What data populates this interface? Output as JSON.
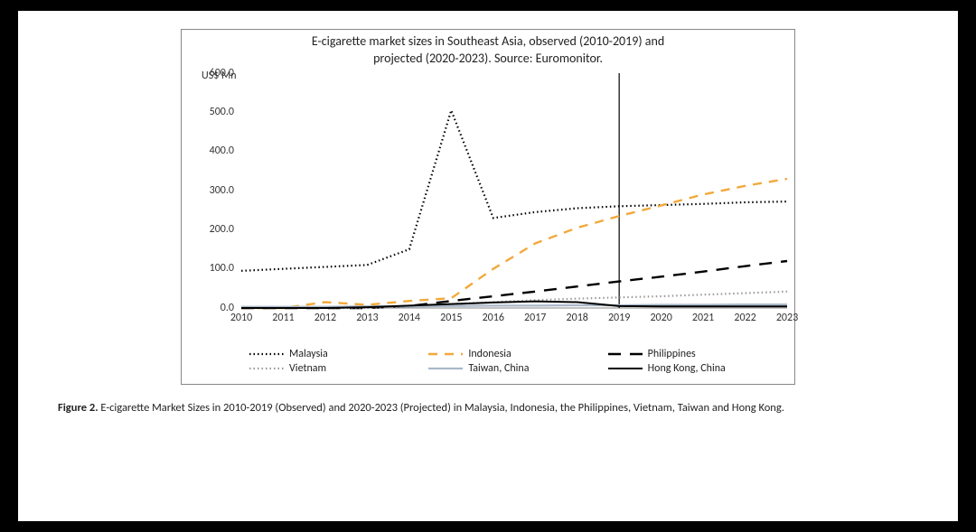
{
  "chart": {
    "type": "line",
    "title_line1": "E-cigarette market sizes in Southeast Asia, observed (2010-2019) and",
    "title_line2": "projected (2020-2023). Source: Euromonitor.",
    "title_fontsize": 14,
    "y_unit_label": "US$ Mn",
    "background_color": "#ffffff",
    "border_color": "#888888",
    "years": [
      "2010",
      "2011",
      "2012",
      "2013",
      "2014",
      "2015",
      "2016",
      "2017",
      "2018",
      "2019",
      "2020",
      "2021",
      "2022",
      "2023"
    ],
    "xlim": [
      2010,
      2023
    ],
    "ylim": [
      0,
      600
    ],
    "ytick_step": 100,
    "yticks": [
      "0.0",
      "100.0",
      "200.0",
      "300.0",
      "400.0",
      "500.0",
      "600.0"
    ],
    "label_fontsize": 12,
    "divider_year": 2019,
    "divider_color": "#000000",
    "divider_width": 1.2,
    "series": [
      {
        "name": "Malaysia",
        "color": "#000000",
        "dash": "1.5,3",
        "width": 2.2,
        "values": [
          95,
          100,
          105,
          110,
          150,
          505,
          230,
          245,
          255,
          260,
          263,
          266,
          270,
          272
        ]
      },
      {
        "name": "Indonesia",
        "color": "#f2a93b",
        "dash": "10,8",
        "width": 2.4,
        "values": [
          0,
          0,
          15,
          8,
          18,
          25,
          100,
          165,
          205,
          235,
          262,
          290,
          312,
          330
        ]
      },
      {
        "name": "Philippines",
        "color": "#000000",
        "dash": "14,10",
        "width": 2.4,
        "values": [
          0,
          0,
          0,
          0,
          5,
          18,
          30,
          42,
          55,
          68,
          80,
          93,
          107,
          120
        ]
      },
      {
        "name": "Vietnam",
        "color": "#999999",
        "dash": "1.5,3",
        "width": 2.2,
        "values": [
          0,
          0,
          0,
          0,
          4,
          10,
          15,
          20,
          24,
          27,
          30,
          34,
          38,
          42
        ]
      },
      {
        "name": "Taiwan, China",
        "color": "#a9b8c9",
        "dash": "",
        "width": 2.2,
        "values": [
          3,
          3,
          3,
          4,
          4,
          5,
          6,
          6,
          7,
          7,
          8,
          8,
          9,
          9
        ]
      },
      {
        "name": "Hong Kong, China",
        "color": "#000000",
        "dash": "",
        "width": 2.0,
        "values": [
          0,
          0,
          0,
          2,
          6,
          10,
          14,
          17,
          15,
          5,
          4,
          4,
          4,
          4
        ]
      }
    ]
  },
  "caption": {
    "label": "Figure 2.",
    "text": "E-cigarette Market Sizes in 2010-2019 (Observed) and 2020-2023 (Projected) in Malaysia, Indonesia, the Philippines, Vietnam, Taiwan and Hong Kong."
  }
}
